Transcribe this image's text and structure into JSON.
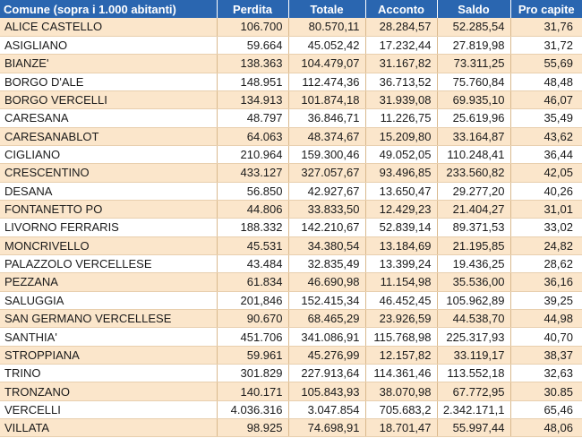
{
  "table": {
    "headers": {
      "comune": "Comune (sopra i 1.000 abitanti)",
      "perdita": "Perdita",
      "totale": "Totale",
      "acconto": "Acconto",
      "saldo": "Saldo",
      "pro_capite": "Pro capite"
    },
    "rows": [
      {
        "comune": "ALICE CASTELLO",
        "perdita": "106.700",
        "totale": "80.570,11",
        "acconto": "28.284,57",
        "saldo": "52.285,54",
        "pro_capite": "31,76"
      },
      {
        "comune": "ASIGLIANO",
        "perdita": "59.664",
        "totale": "45.052,42",
        "acconto": "17.232,44",
        "saldo": "27.819,98",
        "pro_capite": "31,72"
      },
      {
        "comune": "BIANZE'",
        "perdita": "138.363",
        "totale": "104.479,07",
        "acconto": "31.167,82",
        "saldo": "73.311,25",
        "pro_capite": "55,69"
      },
      {
        "comune": "BORGO D'ALE",
        "perdita": "148.951",
        "totale": "112.474,36",
        "acconto": "36.713,52",
        "saldo": "75.760,84",
        "pro_capite": "48,48"
      },
      {
        "comune": "BORGO VERCELLI",
        "perdita": "134.913",
        "totale": "101.874,18",
        "acconto": "31.939,08",
        "saldo": "69.935,10",
        "pro_capite": "46,07"
      },
      {
        "comune": "CARESANA",
        "perdita": "48.797",
        "totale": "36.846,71",
        "acconto": "11.226,75",
        "saldo": "25.619,96",
        "pro_capite": "35,49"
      },
      {
        "comune": "CARESANABLOT",
        "perdita": "64.063",
        "totale": "48.374,67",
        "acconto": "15.209,80",
        "saldo": "33.164,87",
        "pro_capite": "43,62"
      },
      {
        "comune": "CIGLIANO",
        "perdita": "210.964",
        "totale": "159.300,46",
        "acconto": "49.052,05",
        "saldo": "110.248,41",
        "pro_capite": "36,44"
      },
      {
        "comune": "CRESCENTINO",
        "perdita": "433.127",
        "totale": "327.057,67",
        "acconto": "93.496,85",
        "saldo": "233.560,82",
        "pro_capite": "42,05"
      },
      {
        "comune": "DESANA",
        "perdita": "56.850",
        "totale": "42.927,67",
        "acconto": "13.650,47",
        "saldo": "29.277,20",
        "pro_capite": "40,26"
      },
      {
        "comune": "FONTANETTO PO",
        "perdita": "44.806",
        "totale": "33.833,50",
        "acconto": "12.429,23",
        "saldo": "21.404,27",
        "pro_capite": "31,01"
      },
      {
        "comune": "LIVORNO FERRARIS",
        "perdita": "188.332",
        "totale": "142.210,67",
        "acconto": "52.839,14",
        "saldo": "89.371,53",
        "pro_capite": "33,02"
      },
      {
        "comune": "MONCRIVELLO",
        "perdita": "45.531",
        "totale": "34.380,54",
        "acconto": "13.184,69",
        "saldo": "21.195,85",
        "pro_capite": "24,82"
      },
      {
        "comune": "PALAZZOLO VERCELLESE",
        "perdita": "43.484",
        "totale": "32.835,49",
        "acconto": "13.399,24",
        "saldo": "19.436,25",
        "pro_capite": "28,62"
      },
      {
        "comune": "PEZZANA",
        "perdita": "61.834",
        "totale": "46.690,98",
        "acconto": "11.154,98",
        "saldo": "35.536,00",
        "pro_capite": "36,16"
      },
      {
        "comune": "SALUGGIA",
        "perdita": "201,846",
        "totale": "152.415,34",
        "acconto": "46.452,45",
        "saldo": "105.962,89",
        "pro_capite": "39,25"
      },
      {
        "comune": "SAN GERMANO VERCELLESE",
        "perdita": "90.670",
        "totale": "68.465,29",
        "acconto": "23.926,59",
        "saldo": "44.538,70",
        "pro_capite": "44,98"
      },
      {
        "comune": "SANTHIA'",
        "perdita": "451.706",
        "totale": "341.086,91",
        "acconto": "115.768,98",
        "saldo": "225.317,93",
        "pro_capite": "40,70"
      },
      {
        "comune": "STROPPIANA",
        "perdita": "59.961",
        "totale": "45.276,99",
        "acconto": "12.157,82",
        "saldo": "33.119,17",
        "pro_capite": "38,37"
      },
      {
        "comune": "TRINO",
        "perdita": "301.829",
        "totale": "227.913,64",
        "acconto": "114.361,46",
        "saldo": "113.552,18",
        "pro_capite": "32,63"
      },
      {
        "comune": "TRONZANO",
        "perdita": "140.171",
        "totale": "105.843,93",
        "acconto": "38.070,98",
        "saldo": "67.772,95",
        "pro_capite": "30.85"
      },
      {
        "comune": "VERCELLI",
        "perdita": "4.036.316",
        "totale": "3.047.854",
        "acconto": "705.683,2",
        "saldo": "2.342.171,1",
        "pro_capite": "65,46"
      },
      {
        "comune": "VILLATA",
        "perdita": "98.925",
        "totale": "74.698,91",
        "acconto": "18.701,47",
        "saldo": "55.997,44",
        "pro_capite": "48,06"
      }
    ]
  },
  "colors": {
    "header_bg": "#2a66b0",
    "row_alt_bg": "#fbe6cb",
    "row_bg": "#ffffff"
  }
}
